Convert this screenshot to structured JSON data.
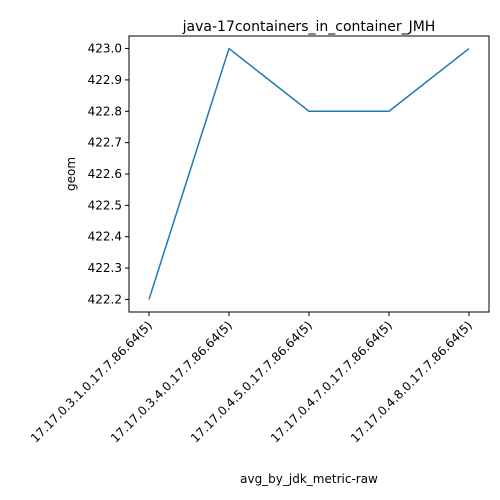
{
  "chart_data": {
    "type": "line",
    "title": "java-17containers_in_container_JMH",
    "xlabel": "avg_by_jdk_metric-raw",
    "ylabel": "geom",
    "categories": [
      "17.17.0.3.1.0.17.7.86.64(5)",
      "17.17.0.3.4.0.17.7.86.64(5)",
      "17.17.0.4.5.0.17.7.86.64(5)",
      "17.17.0.4.7.0.17.7.86.64(5)",
      "17.17.0.4.8.0.17.7.86.64(5)"
    ],
    "series": [
      {
        "values": [
          422.2,
          423.0,
          422.8,
          422.8,
          423.0
        ],
        "color": "#1f77b4"
      }
    ],
    "y_ticks": [
      422.2,
      422.3,
      422.4,
      422.5,
      422.6,
      422.7,
      422.8,
      422.9,
      423.0
    ],
    "ylim": [
      422.16,
      423.04
    ],
    "grid": false,
    "legend": "none"
  }
}
